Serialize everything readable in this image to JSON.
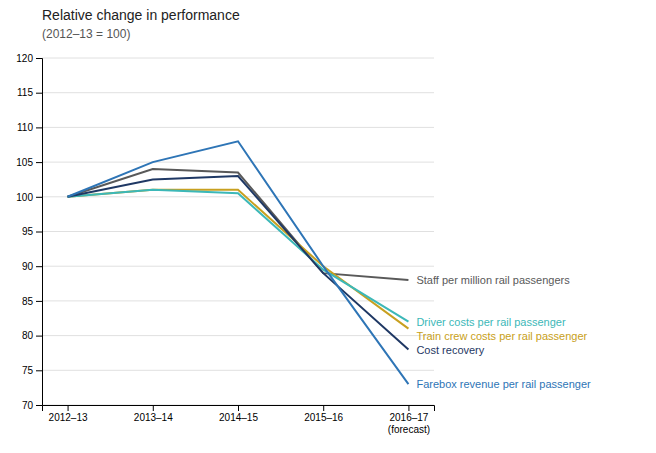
{
  "chart_data": {
    "type": "line",
    "title": "Relative change in performance",
    "subtitle": "(2012–13 = 100)",
    "categories": [
      "2012–13",
      "2013–14",
      "2014–15",
      "2015–16",
      "2016–17\n(forecast)"
    ],
    "ylim": [
      70,
      120
    ],
    "yticks": [
      70,
      75,
      80,
      85,
      90,
      95,
      100,
      105,
      110,
      115,
      120
    ],
    "grid": true,
    "series": [
      {
        "name": "Staff per million rail passengers",
        "color": "#595959",
        "values": [
          100,
          104,
          103.5,
          89,
          88
        ]
      },
      {
        "name": "Train crew costs per rail passenger",
        "color": "#c8a020",
        "values": [
          100,
          101,
          101,
          90,
          81
        ]
      },
      {
        "name": "Driver costs per rail passenger",
        "color": "#3cb8b8",
        "values": [
          100,
          101,
          100.5,
          89.5,
          82
        ]
      },
      {
        "name": "Cost recovery",
        "color": "#1f3864",
        "values": [
          100,
          102.5,
          103,
          89,
          78
        ]
      },
      {
        "name": "Farebox revenue per rail passenger",
        "color": "#2e75b6",
        "values": [
          100,
          105,
          108,
          90,
          73
        ]
      }
    ]
  }
}
